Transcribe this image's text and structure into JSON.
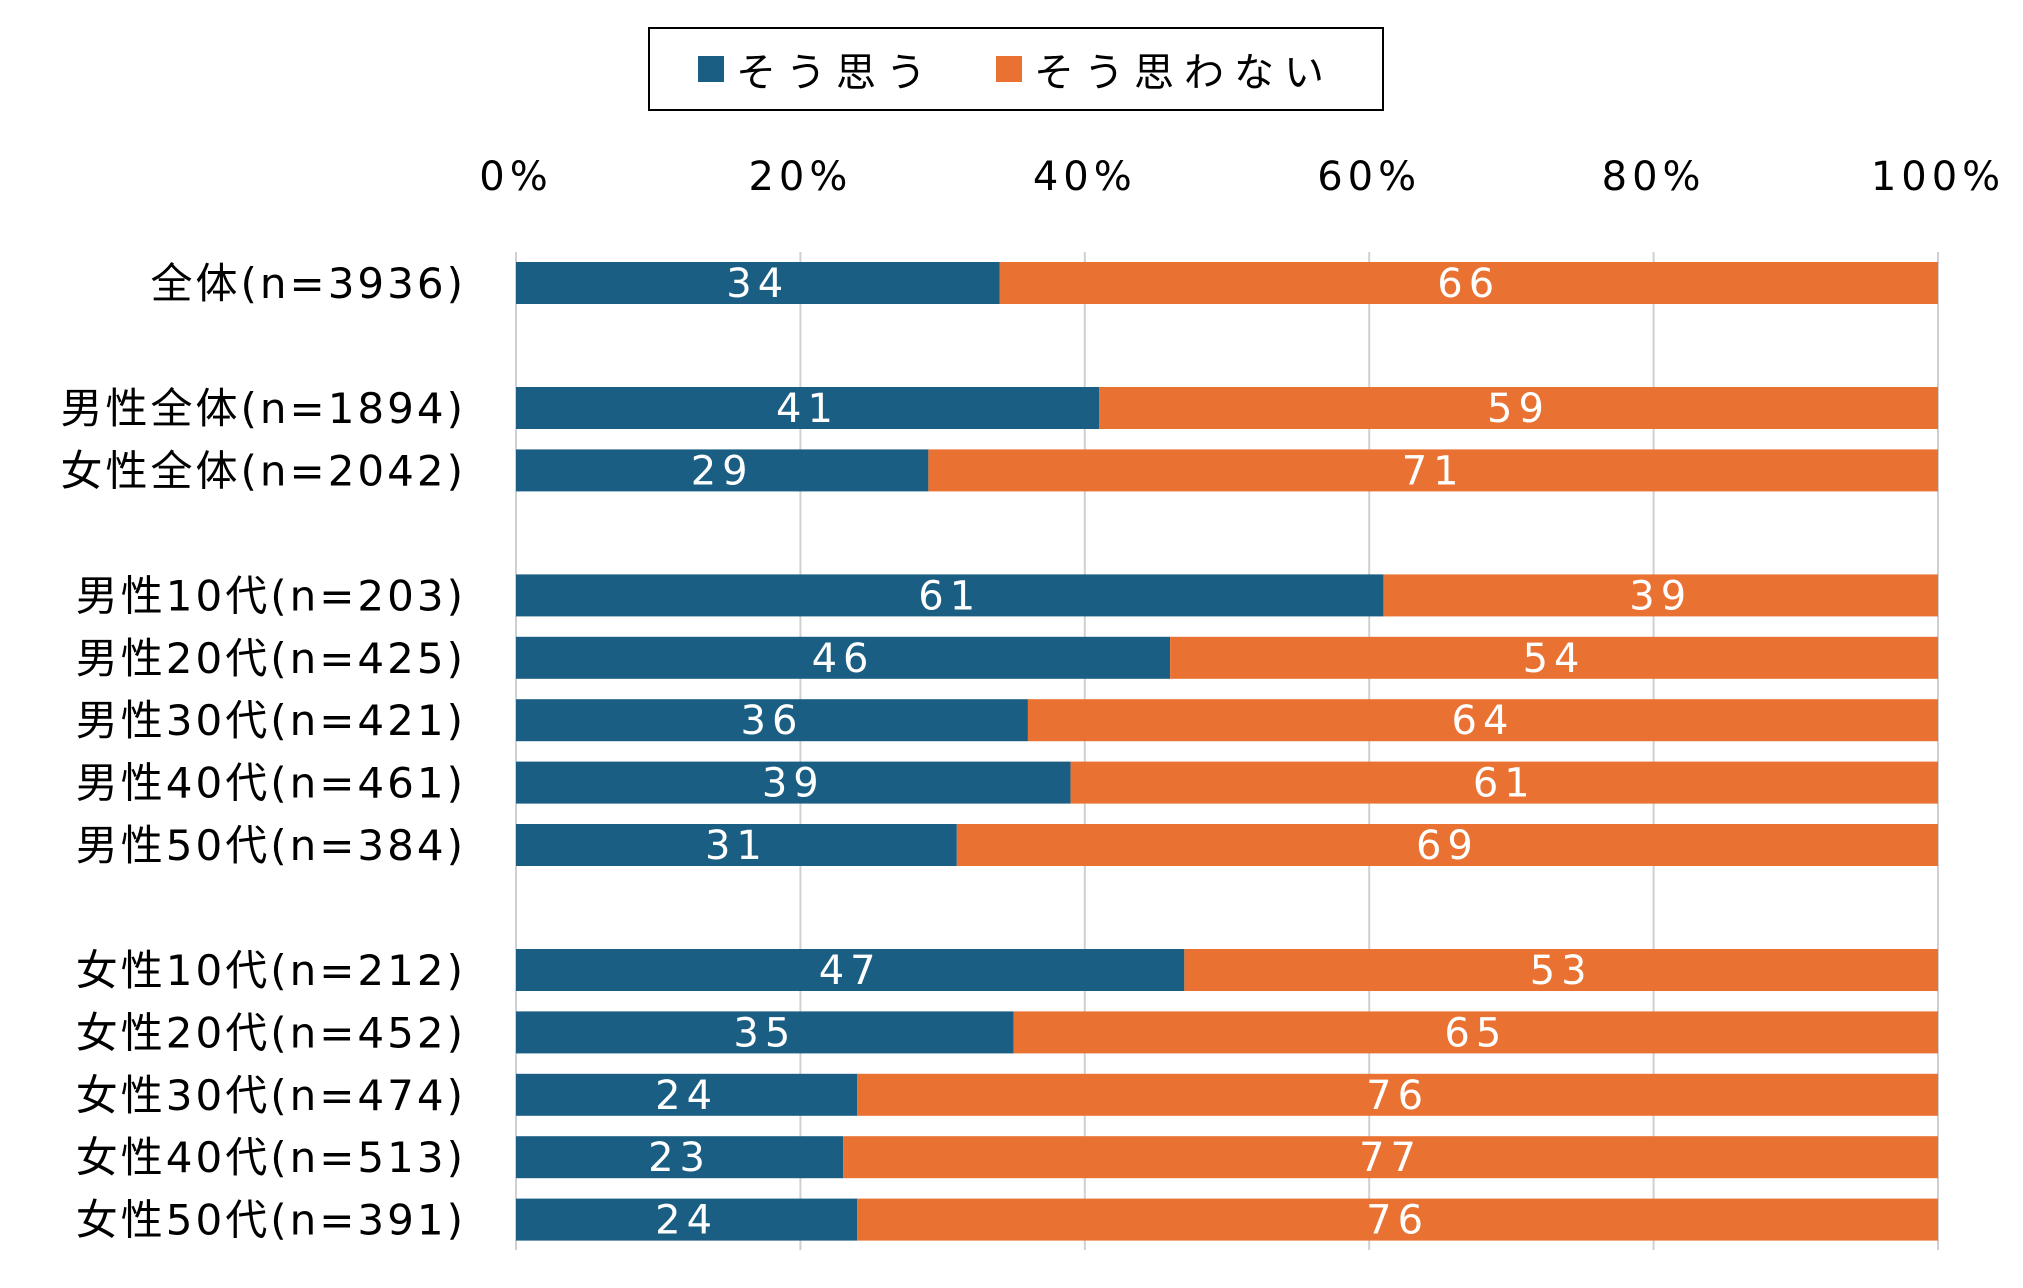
{
  "chart_data": {
    "type": "bar",
    "orientation": "horizontal",
    "stacked": true,
    "percent": true,
    "legend_position": "top",
    "grid": true,
    "xlim": [
      0,
      100
    ],
    "x_ticks": [
      "0%",
      "20%",
      "40%",
      "60%",
      "80%",
      "100%"
    ],
    "series": [
      {
        "name": "そう思う",
        "color": "#1a5e83"
      },
      {
        "name": "そう思わない",
        "color": "#e97132"
      }
    ],
    "groups": [
      {
        "rows": [
          {
            "label": "全体(n=3936)",
            "values": [
              34,
              66
            ]
          }
        ]
      },
      {
        "rows": [
          {
            "label": "男性全体(n=1894)",
            "values": [
              41,
              59
            ]
          },
          {
            "label": "女性全体(n=2042)",
            "values": [
              29,
              71
            ]
          }
        ]
      },
      {
        "rows": [
          {
            "label": "男性10代(n=203)",
            "values": [
              61,
              39
            ]
          },
          {
            "label": "男性20代(n=425)",
            "values": [
              46,
              54
            ]
          },
          {
            "label": "男性30代(n=421)",
            "values": [
              36,
              64
            ]
          },
          {
            "label": "男性40代(n=461)",
            "values": [
              39,
              61
            ]
          },
          {
            "label": "男性50代(n=384)",
            "values": [
              31,
              69
            ]
          }
        ]
      },
      {
        "rows": [
          {
            "label": "女性10代(n=212)",
            "values": [
              47,
              53
            ]
          },
          {
            "label": "女性20代(n=452)",
            "values": [
              35,
              65
            ]
          },
          {
            "label": "女性30代(n=474)",
            "values": [
              24,
              76
            ]
          },
          {
            "label": "女性40代(n=513)",
            "values": [
              23,
              77
            ]
          },
          {
            "label": "女性50代(n=391)",
            "values": [
              24,
              76
            ]
          }
        ]
      }
    ]
  }
}
